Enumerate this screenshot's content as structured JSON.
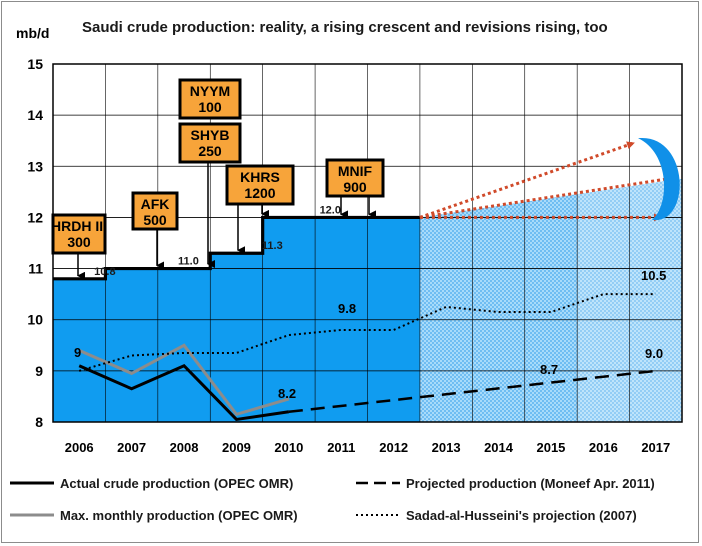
{
  "chart_data": {
    "type": "line",
    "title": "Saudi crude production:  reality, a rising crescent and revisions rising, too",
    "ylabel": "mb/d",
    "ylim": [
      8,
      15
    ],
    "yticks": [
      "8",
      "9",
      "10",
      "11",
      "12",
      "13",
      "14",
      "15"
    ],
    "categories": [
      "2006",
      "2007",
      "2008",
      "2009",
      "2010",
      "2011",
      "2012",
      "2013",
      "2014",
      "2015",
      "2016",
      "2017"
    ],
    "grid": true,
    "legend_position": "bottom",
    "capacity": {
      "steps": [
        {
          "from": 2006,
          "to": 2007,
          "value": 10.8
        },
        {
          "from": 2007,
          "to": 2008,
          "value": 11.0
        },
        {
          "from": 2008,
          "to": 2009,
          "value": 11.0
        },
        {
          "from": 2009,
          "to": 2010,
          "value": 11.3
        },
        {
          "from": 2010,
          "to": 2013,
          "value": 12.0
        }
      ],
      "step_labels": [
        "10.8",
        "11.0",
        "11.3",
        "12.0"
      ],
      "capacity_fill": "#109cf0",
      "future_fill": "#9fd4f7"
    },
    "projects": [
      {
        "name": "HRDH III",
        "capacity": "300"
      },
      {
        "name": "AFK",
        "capacity": "500"
      },
      {
        "name": "NYYM",
        "capacity": "100"
      },
      {
        "name": "SHYB",
        "capacity": "250"
      },
      {
        "name": "KHRS",
        "capacity": "1200"
      },
      {
        "name": "MNIF",
        "capacity": "900"
      }
    ],
    "series": [
      {
        "name": "Actual crude production (OPEC OMR)",
        "style": "solid",
        "color": "#000000",
        "x": [
          2006,
          2007,
          2008,
          2009,
          2010
        ],
        "values": [
          9.1,
          8.65,
          9.1,
          8.05,
          8.2
        ]
      },
      {
        "name": "Max. monthly production (OPEC OMR)",
        "style": "solid",
        "color": "#8c8c8c",
        "x": [
          2006,
          2007,
          2008,
          2009,
          2010
        ],
        "values": [
          9.4,
          8.95,
          9.5,
          8.15,
          8.45
        ]
      },
      {
        "name": "Projected production (Moneef Apr. 2011)",
        "style": "dashed",
        "color": "#000000",
        "x": [
          2010,
          2017
        ],
        "values": [
          8.2,
          9.0
        ]
      },
      {
        "name": "Sadad-al-Husseini's projection (2007)",
        "style": "dotted",
        "color": "#000000",
        "x": [
          2006,
          2007,
          2008,
          2009,
          2010,
          2011,
          2012,
          2013,
          2014,
          2015,
          2016,
          2017
        ],
        "values": [
          9.0,
          9.3,
          9.35,
          9.35,
          9.7,
          9.8,
          9.8,
          10.25,
          10.15,
          10.15,
          10.5,
          10.5
        ]
      }
    ],
    "annotations": [
      "9",
      "8.2",
      "9.8",
      "8.7",
      "9.0",
      "10.5"
    ],
    "crescent_arrows": {
      "from": {
        "x": 2013,
        "y": 12.0
      },
      "to_y": [
        13.45,
        12.8,
        12.0
      ],
      "color": "#d04a2a"
    },
    "crescent_color": "#1090e8"
  }
}
